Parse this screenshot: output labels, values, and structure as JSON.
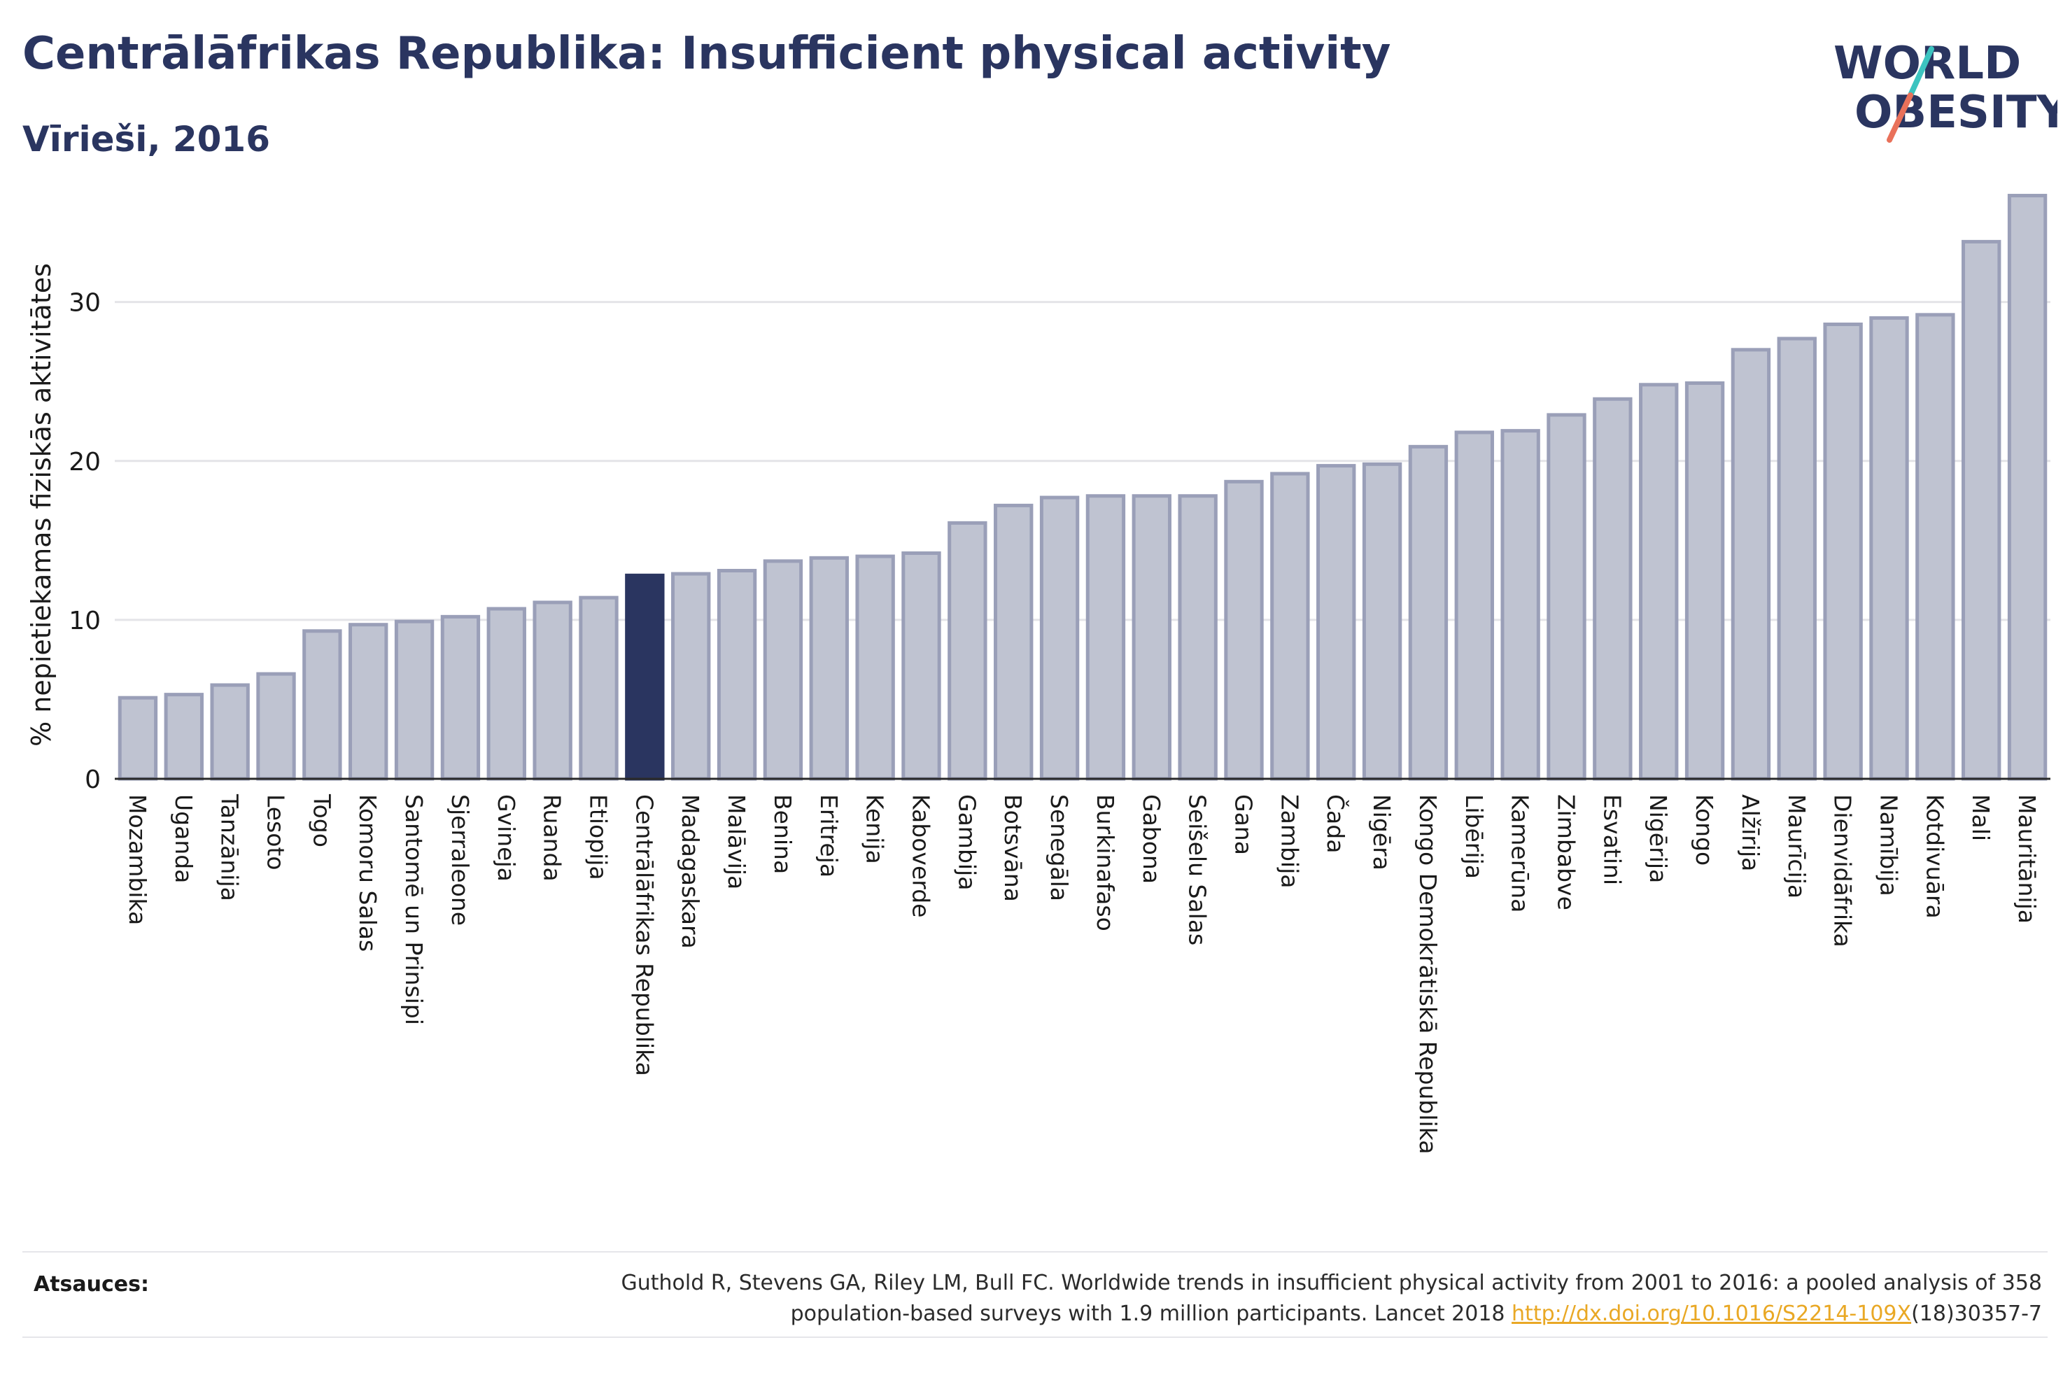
{
  "header": {
    "title": "Centrālāfrikas Republika: Insufficient physical activity",
    "subtitle": "Vīrieši, 2016"
  },
  "logo": {
    "line1": "WORLD",
    "line2": "OBESITY"
  },
  "colors": {
    "bar": "#bfc3d1",
    "bar_border": "#9a9fb8",
    "highlight": "#2a3560",
    "text": "#2a3560",
    "link": "#e9a825",
    "logo_slash_top": "#3cc4c0",
    "logo_slash_bottom": "#e9715a"
  },
  "chart_data": {
    "type": "bar",
    "ylabel": "% nepietiekamas fiziskās aktivitātes",
    "ylim": [
      0,
      38
    ],
    "yticks": [
      0,
      10,
      20,
      30
    ],
    "grid": true,
    "highlight_category": "Centrālāfrikas Republika",
    "categories": [
      "Mozambika",
      "Uganda",
      "Tanzānija",
      "Lesoto",
      "Togo",
      "Komoru Salas",
      "Santomē un Prinsipi",
      "Sjerraleone",
      "Gvineja",
      "Ruanda",
      "Etiopija",
      "Centrālāfrikas Republika",
      "Madagaskara",
      "Malāvija",
      "Benina",
      "Eritreja",
      "Kenija",
      "Kaboverde",
      "Gambija",
      "Botsvāna",
      "Senegāla",
      "Burkinafaso",
      "Gabona",
      "Seišelu Salas",
      "Gana",
      "Zambija",
      "Čada",
      "Nigēra",
      "Kongo Demokrātiskā Republika",
      "Libērija",
      "Kamerūna",
      "Zimbabve",
      "Esvatini",
      "Nigērija",
      "Kongo",
      "Alžīrija",
      "Maurīcija",
      "Dienvidāfrika",
      "Namībija",
      "Kotdivuāra",
      "Mali",
      "Mauritānija"
    ],
    "values": [
      5.1,
      5.3,
      5.9,
      6.6,
      9.3,
      9.7,
      9.9,
      10.2,
      10.7,
      11.1,
      11.4,
      12.8,
      12.9,
      13.1,
      13.7,
      13.9,
      14.0,
      14.2,
      16.1,
      17.2,
      17.7,
      17.8,
      17.8,
      17.8,
      18.7,
      19.2,
      19.7,
      19.8,
      20.9,
      21.8,
      21.9,
      22.9,
      23.9,
      24.8,
      24.9,
      27.0,
      27.7,
      28.6,
      29.0,
      29.2,
      33.8,
      36.7
    ]
  },
  "source": {
    "label": "Atsauces:",
    "line1": "Guthold R, Stevens GA, Riley LM, Bull FC. Worldwide trends in insufficient physical activity from 2001 to 2016: a pooled analysis of 358",
    "line2_prefix": "population-based surveys with 1.9 million participants. Lancet 2018 ",
    "link": "http://dx.doi.org/10.1016/S2214-109X",
    "line2_suffix": "(18)30357-7"
  }
}
